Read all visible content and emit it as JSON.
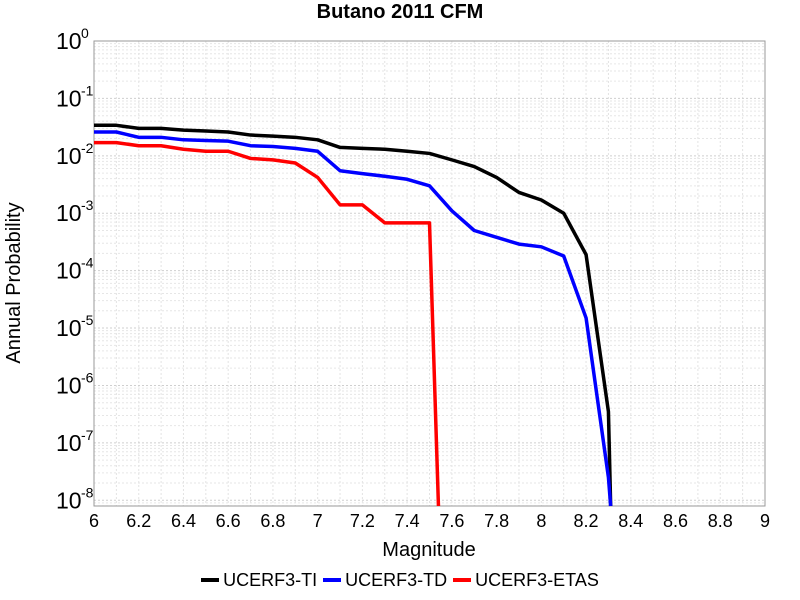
{
  "chart_data": {
    "type": "line",
    "title": "Butano 2011 CFM",
    "xlabel": "Magnitude",
    "ylabel": "Annual Probability",
    "xlim": [
      6,
      9
    ],
    "ylim_log10": [
      -8.1,
      0
    ],
    "y_scale": "log",
    "grid": true,
    "legend_placement": "bottom-center",
    "x_ticks": [
      "6",
      "6.2",
      "6.4",
      "6.6",
      "6.8",
      "7",
      "7.2",
      "7.4",
      "7.6",
      "7.8",
      "8",
      "8.2",
      "8.4",
      "8.6",
      "8.8",
      "9"
    ],
    "y_ticks": [
      {
        "base": "10",
        "exp": "0"
      },
      {
        "base": "10",
        "exp": "-1"
      },
      {
        "base": "10",
        "exp": "-2"
      },
      {
        "base": "10",
        "exp": "-3"
      },
      {
        "base": "10",
        "exp": "-4"
      },
      {
        "base": "10",
        "exp": "-5"
      },
      {
        "base": "10",
        "exp": "-6"
      },
      {
        "base": "10",
        "exp": "-7"
      },
      {
        "base": "10",
        "exp": "-8"
      }
    ],
    "series": [
      {
        "name": "UCERF3-TI",
        "color": "#000000",
        "x": [
          6.0,
          6.1,
          6.2,
          6.3,
          6.4,
          6.5,
          6.6,
          6.7,
          6.8,
          6.9,
          7.0,
          7.1,
          7.2,
          7.3,
          7.4,
          7.5,
          7.6,
          7.7,
          7.8,
          7.9,
          8.0,
          8.1,
          8.2,
          8.3,
          8.31
        ],
        "y": [
          0.034,
          0.034,
          0.03,
          0.03,
          0.028,
          0.027,
          0.026,
          0.023,
          0.022,
          0.021,
          0.019,
          0.014,
          0.0135,
          0.013,
          0.012,
          0.011,
          0.0085,
          0.0065,
          0.0042,
          0.0023,
          0.0017,
          0.001,
          0.00019,
          3.5e-07,
          5e-09
        ]
      },
      {
        "name": "UCERF3-TD",
        "color": "#0000ff",
        "x": [
          6.0,
          6.1,
          6.2,
          6.3,
          6.4,
          6.5,
          6.6,
          6.7,
          6.8,
          6.9,
          7.0,
          7.1,
          7.2,
          7.3,
          7.4,
          7.5,
          7.6,
          7.7,
          7.8,
          7.9,
          8.0,
          8.1,
          8.2,
          8.3,
          8.31
        ],
        "y": [
          0.026,
          0.026,
          0.021,
          0.021,
          0.019,
          0.0185,
          0.018,
          0.015,
          0.0145,
          0.0135,
          0.012,
          0.0055,
          0.0049,
          0.0044,
          0.0039,
          0.003,
          0.0011,
          0.0005,
          0.00038,
          0.00029,
          0.00026,
          0.00018,
          1.5e-05,
          2.5e-08,
          5e-09
        ]
      },
      {
        "name": "UCERF3-ETAS",
        "color": "#ff0000",
        "x": [
          6.0,
          6.1,
          6.2,
          6.3,
          6.4,
          6.5,
          6.6,
          6.7,
          6.8,
          6.9,
          7.0,
          7.1,
          7.2,
          7.3,
          7.4,
          7.5,
          7.54
        ],
        "y": [
          0.017,
          0.017,
          0.015,
          0.015,
          0.013,
          0.012,
          0.012,
          0.009,
          0.0085,
          0.0075,
          0.0042,
          0.0014,
          0.0014,
          0.00068,
          0.00068,
          0.00068,
          5e-09
        ]
      }
    ]
  }
}
